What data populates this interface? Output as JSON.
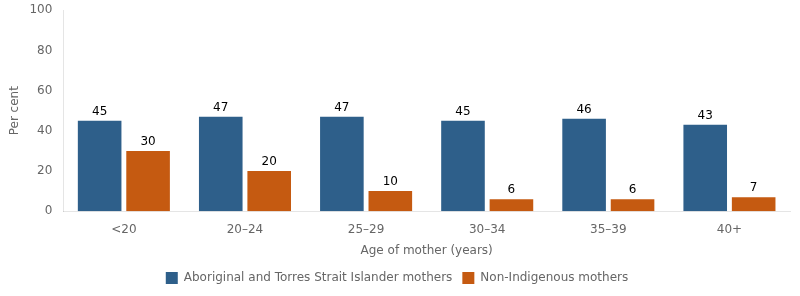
{
  "chart_data": {
    "type": "bar",
    "xlabel": "Age of mother (years)",
    "ylabel": "Per cent",
    "categories": [
      "<20",
      "20–24",
      "25–29",
      "30–34",
      "35–39",
      "40+"
    ],
    "series": [
      {
        "name": "Aboriginal and Torres Strait Islander mothers",
        "color": "#2E5F8A",
        "values": [
          45,
          47,
          47,
          45,
          46,
          43
        ]
      },
      {
        "name": "Non-Indigenous mothers",
        "color": "#C55A11",
        "values": [
          30,
          20,
          10,
          6,
          6,
          7
        ]
      }
    ],
    "ylim": [
      0,
      100
    ],
    "yticks": [
      0,
      20,
      40,
      60,
      80,
      100
    ],
    "grid": false,
    "legend": "bottom",
    "data_labels": true
  }
}
